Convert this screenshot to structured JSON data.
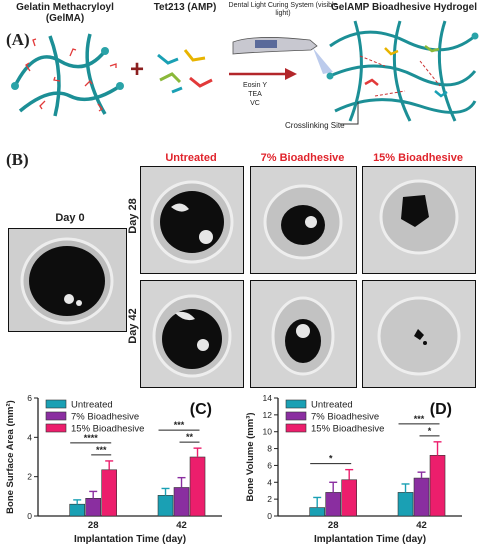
{
  "panel_a": {
    "letter": "(A)",
    "gelma_label": "Gelatin Methacryloyl (GelMA)",
    "amp_label": "Tet213 (AMP)",
    "curing_label": "Dental Light Curing System (visible light)",
    "reagents": [
      "Eosin Y",
      "TEA",
      "VC"
    ],
    "product_label": "GelAMP Bioadhesive Hydrogel",
    "crosslink_label": "Crosslinking Site"
  },
  "panel_b": {
    "letter": "(B)",
    "day0_label": "Day 0",
    "columns": [
      "Untreated",
      "7% Bioadhesive",
      "15% Bioadhesive"
    ],
    "rows": [
      "Day 28",
      "Day 42"
    ]
  },
  "colors": {
    "untreated": "#1aa0b4",
    "bio7": "#8a2ea0",
    "bio15": "#ec1e6c",
    "heading_red": "#e0242c"
  },
  "chart_data": [
    {
      "panel": "(C)",
      "type": "bar",
      "categories": [
        "28",
        "42"
      ],
      "series": [
        {
          "name": "Untreated",
          "values": [
            0.6,
            1.05
          ],
          "errors": [
            0.22,
            0.35
          ]
        },
        {
          "name": "7% Bioadhesive",
          "values": [
            0.9,
            1.45
          ],
          "errors": [
            0.35,
            0.5
          ]
        },
        {
          "name": "15% Bioadhesive",
          "values": [
            2.35,
            3.0
          ],
          "errors": [
            0.45,
            0.45
          ]
        }
      ],
      "xlabel": "Implantation Time (day)",
      "ylabel": "Bone Surface Area (mm²)",
      "ylim": [
        0,
        6
      ],
      "yticks": [
        "0",
        "2",
        "4",
        "6"
      ],
      "significance": [
        {
          "group": 0,
          "from": 0,
          "to": 2,
          "label": "****"
        },
        {
          "group": 0,
          "from": 1,
          "to": 2,
          "label": "***"
        },
        {
          "group": 1,
          "from": 0,
          "to": 2,
          "label": "***"
        },
        {
          "group": 1,
          "from": 1,
          "to": 2,
          "label": "**"
        }
      ],
      "legend": "top-left"
    },
    {
      "panel": "(D)",
      "type": "bar",
      "categories": [
        "28",
        "42"
      ],
      "series": [
        {
          "name": "Untreated",
          "values": [
            1.0,
            2.8
          ],
          "errors": [
            1.2,
            1.0
          ]
        },
        {
          "name": "7% Bioadhesive",
          "values": [
            2.8,
            4.5
          ],
          "errors": [
            1.2,
            0.7
          ]
        },
        {
          "name": "15% Bioadhesive",
          "values": [
            4.3,
            7.2
          ],
          "errors": [
            1.2,
            1.6
          ]
        }
      ],
      "xlabel": "Implantation Time (day)",
      "ylabel": "Bone Volume (mm³)",
      "ylim": [
        0,
        14
      ],
      "yticks": [
        "0",
        "2",
        "4",
        "6",
        "8",
        "10",
        "12",
        "14"
      ],
      "significance": [
        {
          "group": 0,
          "from": 0,
          "to": 2,
          "label": "*"
        },
        {
          "group": 1,
          "from": 0,
          "to": 2,
          "label": "***"
        },
        {
          "group": 1,
          "from": 1,
          "to": 2,
          "label": "*"
        }
      ],
      "legend": "top-left"
    }
  ]
}
